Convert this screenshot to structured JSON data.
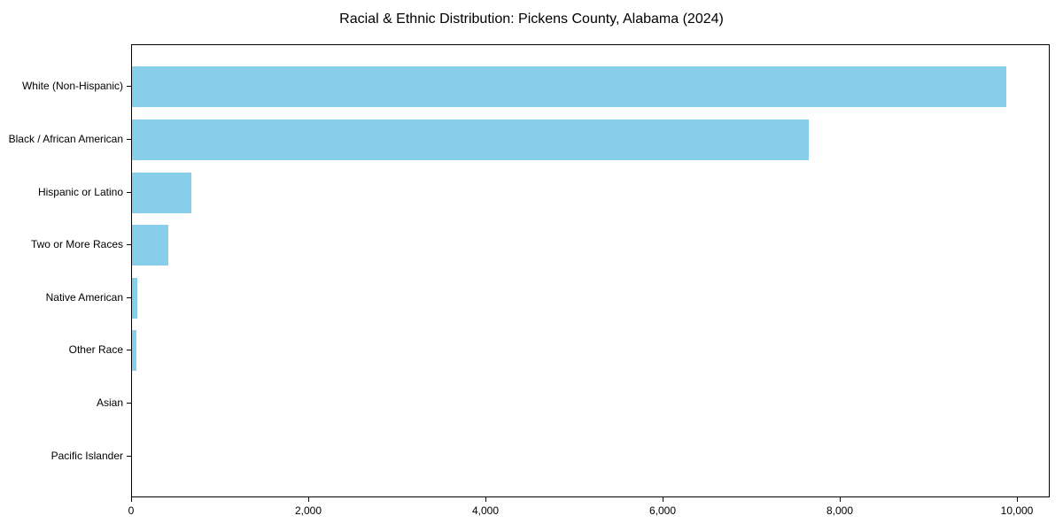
{
  "chart_data": {
    "type": "bar",
    "orientation": "horizontal",
    "title": "Racial & Ethnic Distribution: Pickens County, Alabama (2024)",
    "xlabel": "",
    "ylabel": "",
    "categories": [
      "White (Non-Hispanic)",
      "Black / African American",
      "Hispanic or Latino",
      "Two or More Races",
      "Native American",
      "Other Race",
      "Asian",
      "Pacific Islander"
    ],
    "values": [
      9870,
      7640,
      667,
      407,
      57,
      50,
      0,
      0
    ],
    "xlim": [
      0,
      10370
    ],
    "xticks": [
      0,
      2000,
      4000,
      6000,
      8000,
      10000
    ],
    "xtick_labels": [
      "0",
      "2,000",
      "4,000",
      "6,000",
      "8,000",
      "10,000"
    ],
    "grid": false,
    "legend": null,
    "bar_color": "#87ceeb"
  }
}
